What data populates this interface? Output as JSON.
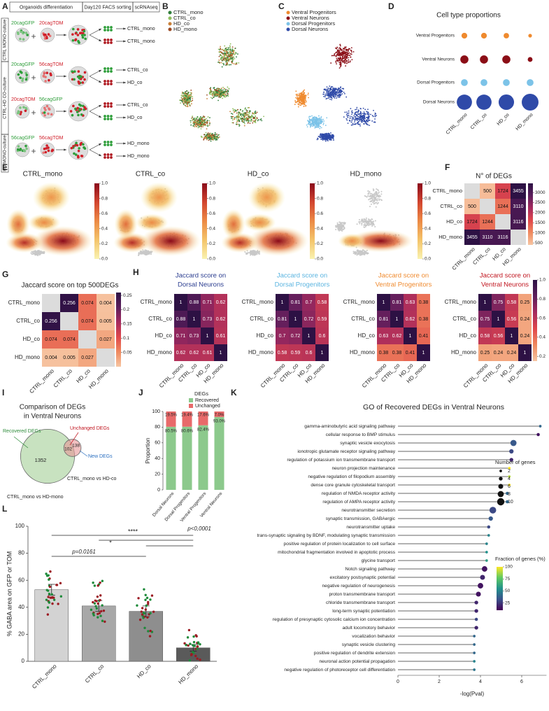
{
  "a": {
    "letter": "A",
    "header": [
      "Organoids differentiation",
      "Day120 FACS sorting",
      "scRNAseq"
    ],
    "groups": [
      "CTRL MONO-culture",
      "CTRL-HD CO-culture",
      "HD MONO-culture"
    ],
    "rows": [
      {
        "left": "20cagGFP",
        "left_color": "#2e9e3a",
        "right": "20cagTOM",
        "right_color": "#d0202a",
        "outputs": [
          "CTRL_mono",
          "CTRL_mono"
        ],
        "output_colors": [
          "#2e9e3a",
          "#b01b22"
        ]
      },
      {
        "left": "20cagGFP",
        "left_color": "#2e9e3a",
        "right": "56cagTOM",
        "right_color": "#d0202a",
        "outputs": [
          "CTRL_co",
          "HD_co"
        ],
        "output_colors": [
          "#2e9e3a",
          "#b01b22"
        ]
      },
      {
        "left": "20cagTOM",
        "left_color": "#d0202a",
        "right": "56cagGFP",
        "right_color": "#2e9e3a",
        "outputs": [
          "CTRL_co",
          "HD_co"
        ],
        "output_colors": [
          "#b01b22",
          "#2e9e3a"
        ]
      },
      {
        "left": "56cagGFP",
        "left_color": "#2e9e3a",
        "right": "56cagTOM",
        "right_color": "#d0202a",
        "outputs": [
          "HD_mono",
          "HD_mono"
        ],
        "output_colors": [
          "#2e9e3a",
          "#b01b22"
        ]
      }
    ]
  },
  "b": {
    "letter": "B",
    "legend": [
      {
        "name": "CTRL_mono",
        "color": "#2f7d3a"
      },
      {
        "name": "CTRL_co",
        "color": "#8fbf5f"
      },
      {
        "name": "HD_co",
        "color": "#c9803a"
      },
      {
        "name": "HD_mono",
        "color": "#9c4a24"
      }
    ]
  },
  "c": {
    "letter": "C",
    "legend": [
      {
        "name": "Ventral Progenitors",
        "color": "#ef8a2e"
      },
      {
        "name": "Ventral Neurons",
        "color": "#8b0e16"
      },
      {
        "name": "Dorsal Progenitors",
        "color": "#7cc3e8"
      },
      {
        "name": "Dorsal Neurons",
        "color": "#2f4aa8"
      }
    ]
  },
  "d": {
    "letter": "D",
    "chart_data": {
      "type": "dot",
      "title": "Cell type proportions",
      "categories": [
        "CTRL_mono",
        "CTRL_co",
        "HD_co",
        "HD_mono"
      ],
      "series": [
        {
          "name": "Ventral Progenitors",
          "color": "#ef8a2e",
          "values": [
            10,
            10,
            9,
            4
          ]
        },
        {
          "name": "Ventral Neurons",
          "color": "#8b0e16",
          "values": [
            20,
            20,
            20,
            7
          ]
        },
        {
          "name": "Dorsal Progenitors",
          "color": "#7cc3e8",
          "values": [
            14,
            14,
            14,
            14
          ]
        },
        {
          "name": "Dorsal Neurons",
          "color": "#2f4aa8",
          "values": [
            70,
            70,
            72,
            85
          ]
        }
      ]
    }
  },
  "e": {
    "letter": "E",
    "maps": [
      "CTRL_mono",
      "CTRL_co",
      "HD_co",
      "HD_mono"
    ],
    "clim": [
      0,
      1
    ],
    "ticks": [
      {
        "value": 0,
        "label": "0.0"
      },
      0.2,
      0.4,
      0.6,
      0.8,
      {
        "value": 1,
        "label": "1.0"
      }
    ]
  },
  "f": {
    "letter": "F",
    "title": "N° of DEGs",
    "labels": [
      "CTRL_mono",
      "CTRL_co",
      "HD_co",
      "HD_mono"
    ],
    "matrix": [
      [
        null,
        500,
        1724,
        3455
      ],
      [
        500,
        null,
        1244,
        3110
      ],
      [
        1724,
        1244,
        null,
        3116
      ],
      [
        3455,
        3110,
        3116,
        null
      ]
    ],
    "clim": [
      400,
      3455
    ],
    "ticks": [
      500,
      1000,
      1500,
      2000,
      2500,
      3000
    ]
  },
  "g": {
    "letter": "G",
    "title": "Jaccard score on top 500DEGs",
    "labels": [
      "CTRL_mono",
      "CTRL_co",
      "HD_co",
      "HD_mono"
    ],
    "matrix": [
      [
        null,
        0.256,
        0.074,
        0.004
      ],
      [
        0.256,
        null,
        0.074,
        0.005
      ],
      [
        0.074,
        0.074,
        null,
        0.027
      ],
      [
        0.004,
        0.005,
        0.027,
        null
      ]
    ],
    "clim": [
      0,
      0.26
    ],
    "ticks": [
      0.05,
      0.1,
      0.15,
      0.2,
      0.25
    ]
  },
  "h": {
    "letter": "H",
    "title_prefix": "Jaccard score on",
    "labels": [
      "CTRL_mono",
      "CTRL_co",
      "HD_co",
      "HD_mono"
    ],
    "clim": [
      0.15,
      1
    ],
    "ticks": [
      0.2,
      0.4,
      0.6,
      0.8,
      {
        "value": 1,
        "label": "1.0"
      }
    ],
    "heatmaps": [
      {
        "name": "Dorsal Neurons",
        "color": "#2a3c8f",
        "matrix": [
          [
            1,
            0.88,
            0.71,
            0.62
          ],
          [
            0.88,
            1,
            0.73,
            0.62
          ],
          [
            0.71,
            0.73,
            1,
            0.61
          ],
          [
            0.62,
            0.62,
            0.61,
            1
          ]
        ]
      },
      {
        "name": "Dorsal Progenitors",
        "color": "#5ab4e0",
        "matrix": [
          [
            1,
            0.81,
            0.7,
            0.58
          ],
          [
            0.81,
            1,
            0.72,
            0.59
          ],
          [
            0.7,
            0.72,
            1,
            0.6
          ],
          [
            0.58,
            0.59,
            0.6,
            1
          ]
        ]
      },
      {
        "name": "Ventral Progenitors",
        "color": "#ef8a2e",
        "matrix": [
          [
            1,
            0.81,
            0.63,
            0.38
          ],
          [
            0.81,
            1,
            0.62,
            0.38
          ],
          [
            0.63,
            0.62,
            1,
            0.41
          ],
          [
            0.38,
            0.38,
            0.41,
            1
          ]
        ]
      },
      {
        "name": "Ventral Neurons",
        "color": "#c0141e",
        "matrix": [
          [
            1,
            0.75,
            0.58,
            0.25
          ],
          [
            0.75,
            1,
            0.56,
            0.24
          ],
          [
            0.58,
            0.56,
            1,
            0.24
          ],
          [
            0.25,
            0.24,
            0.24,
            1
          ]
        ]
      }
    ]
  },
  "i": {
    "letter": "I",
    "title": [
      "Comparison of DEGs",
      "in Ventral Neurons"
    ],
    "recovered": 1352,
    "overlap": 102,
    "new": 138,
    "labels": {
      "recovered": "Recovered DEGs",
      "unchanged": "Unchanged DEGs",
      "new": "New DEGs"
    },
    "sets": [
      "CTRL_mono vs HD-mono",
      "CTRL_mono vs HD-co"
    ]
  },
  "j": {
    "letter": "J",
    "chart_data": {
      "type": "stacked_bar",
      "legend_title": "DEGs",
      "ylabel": "Proportion",
      "categories": [
        "Dorsal Neurons",
        "Dorsal Progenitors",
        "Ventral Progenitors",
        "Ventral Neurons"
      ],
      "series": [
        {
          "name": "Recovered",
          "color": "#8cc98c",
          "values": [
            80.5,
            80.6,
            82.4,
            93.0
          ],
          "value_labels": [
            "80.5%",
            "80.6%",
            "82.4%",
            "93.0%"
          ]
        },
        {
          "name": "Unchanged",
          "color": "#e86a6a",
          "values": [
            19.5,
            19.4,
            17.6,
            7.0
          ],
          "value_labels": [
            "19.5%",
            "19.4%",
            "17.6%",
            "7.0%"
          ]
        }
      ],
      "ylim": [
        0,
        100
      ],
      "yticks": [
        0,
        20,
        40,
        60,
        80,
        100
      ]
    }
  },
  "k": {
    "letter": "K",
    "chart_data": {
      "type": "lollipop",
      "title": "GO of Recovered DEGs in Ventral Neurons",
      "xlabel": "-log(Pval)",
      "xlim": [
        0,
        7.2
      ],
      "xticks": [
        0,
        2,
        4,
        6
      ],
      "categories": [
        "gamma-aminobutyric acid signaling pathway",
        "cellular response to BMP stimulus",
        "synaptic vesicle exocytosis",
        "ionotropic glutamate receptor signaling pathway",
        "regulation of potassium ion transmembrane transport",
        "neuron projection maintenance",
        "negative regulation of filopodium assembly",
        "dense core granule cytoskeletal transport",
        "regulation of NMDA receptor activity",
        "regulation of AMPA receptor activity",
        "neurotransmitter secretion",
        "synaptic transmission, GABAergic",
        "neurotransmitter uptake",
        "trans-synaptic signaling by BDNF, modulating synaptic transmission",
        "positive regulation of protein localization to cell surface",
        "mitochondrial fragmentation involved in apoptotic process",
        "glycine transport",
        "Notch signaling pathway",
        "excitatory postsynaptic potential",
        "negative regulation of neurogenesis",
        "proton transmembrane transport",
        "chloride transmembrane transport",
        "long-term synaptic potentiation",
        "regulation of presynaptic cytosolic calcium ion concentration",
        "adult locomotory behavior",
        "vocalization behavior",
        "synaptic vesicle clustering",
        "positive regulation of dendrite extension",
        "neuronal action potential propagation",
        "negative regulation of photoreceptor cell differentiation"
      ],
      "values": [
        6.9,
        6.8,
        5.6,
        5.5,
        5.5,
        5.4,
        5.4,
        5.4,
        5.3,
        5.3,
        4.6,
        4.5,
        4.4,
        4.4,
        4.3,
        4.3,
        4.3,
        4.2,
        4.1,
        4.0,
        3.9,
        3.8,
        3.8,
        3.8,
        3.8,
        3.7,
        3.7,
        3.7,
        3.7,
        3.7
      ],
      "sizes": [
        2,
        3,
        8,
        5,
        4,
        2,
        2,
        2,
        3,
        3,
        9,
        5,
        3,
        2,
        2,
        2,
        2,
        7,
        6,
        7,
        6,
        4,
        4,
        3,
        4,
        2,
        2,
        2,
        2,
        2
      ],
      "fractions": [
        40,
        15,
        35,
        30,
        20,
        100,
        90,
        100,
        40,
        40,
        30,
        35,
        30,
        50,
        50,
        55,
        60,
        15,
        20,
        15,
        15,
        20,
        20,
        30,
        20,
        40,
        40,
        40,
        50,
        45
      ],
      "size_legend_title": "Number of genes",
      "size_ticks": [
        2,
        4,
        6,
        8,
        10
      ],
      "color_legend_title": "Fraction of genes (%)",
      "color_lim": [
        10,
        100
      ],
      "color_ticks": [
        25,
        50,
        75,
        100
      ]
    }
  },
  "l": {
    "letter": "L",
    "chart_data": {
      "type": "bar",
      "ylabel": "% GABA area on GFP or TOM",
      "categories": [
        "CTRL_mono",
        "CTRL_co",
        "HD_co",
        "HD_mono"
      ],
      "values": [
        53,
        41,
        37,
        10
      ],
      "errors": [
        4,
        4,
        4,
        2.5
      ],
      "colors": [
        "#d3d3d3",
        "#a8a8a8",
        "#8e8e8e",
        "#5a5a5a"
      ],
      "ylim": [
        0,
        100
      ],
      "yticks": [
        0,
        20,
        40,
        60,
        80,
        100
      ],
      "annotations": [
        "****",
        "p<0,0001",
        "*",
        "p=0.0161"
      ]
    }
  }
}
